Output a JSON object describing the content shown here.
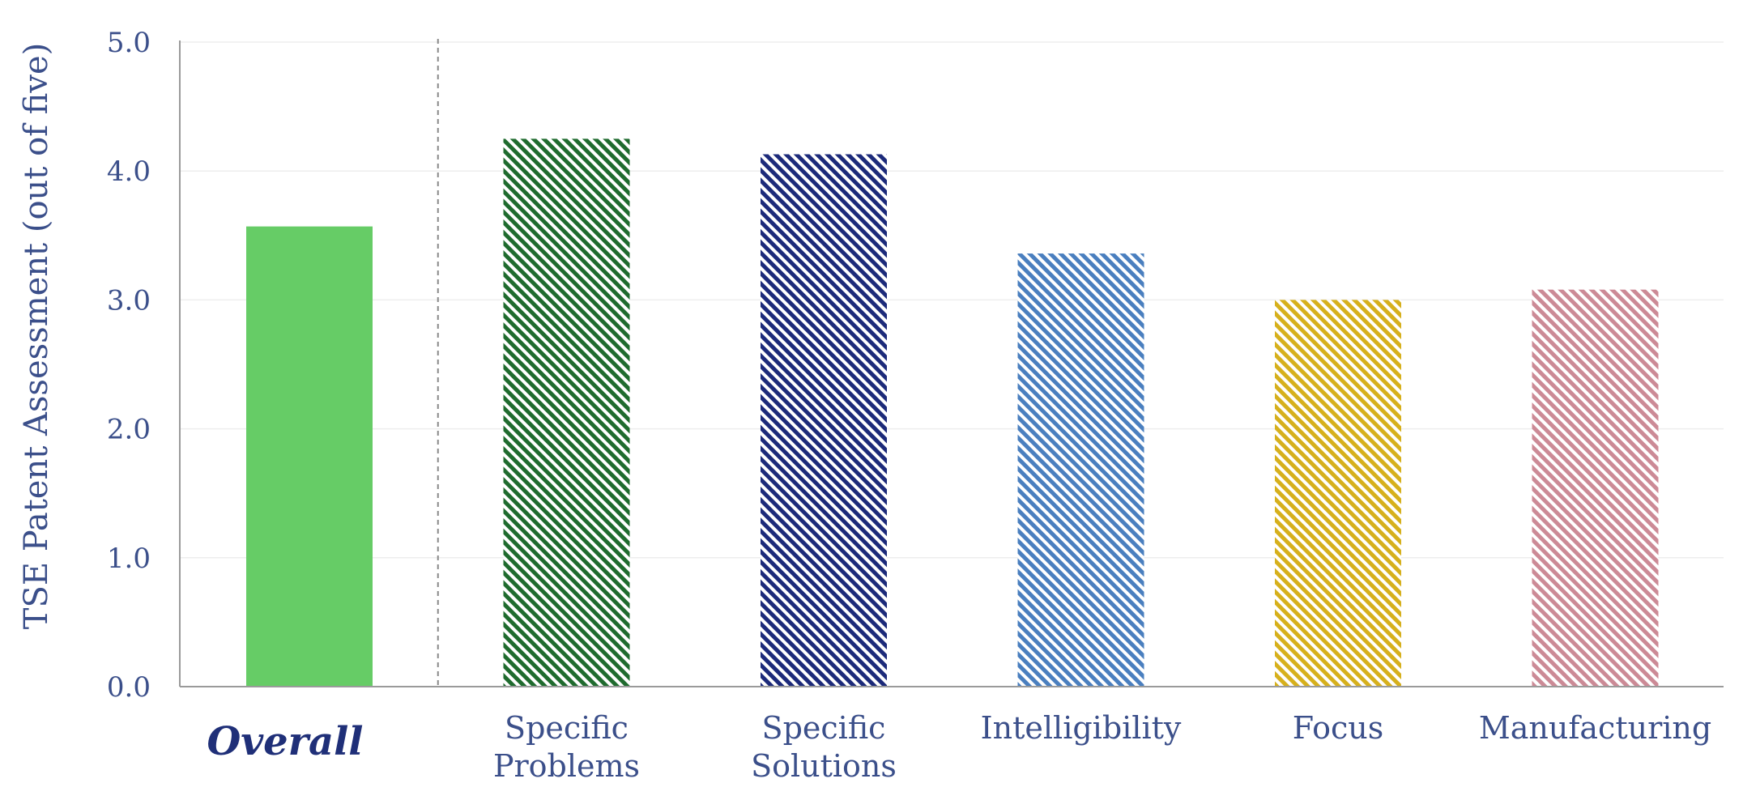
{
  "chart_data": {
    "type": "bar",
    "title": "",
    "xlabel": "",
    "ylabel": "TSE Patent Assessment (out of five)",
    "ylim": [
      0,
      5
    ],
    "yticks": [
      0,
      1,
      2,
      3,
      4,
      5
    ],
    "ytick_labels": [
      "0.0",
      "1.0",
      "2.0",
      "3.0",
      "4.0",
      "5.0"
    ],
    "grid": true,
    "legend": "none",
    "categories": [
      [
        "Overall"
      ],
      [
        "Specific",
        "Problems"
      ],
      [
        "Specific",
        "Solutions"
      ],
      [
        "Intelligibility"
      ],
      [
        "Focus"
      ],
      [
        "Manufacturing"
      ]
    ],
    "values": [
      3.57,
      4.25,
      4.13,
      3.36,
      3.0,
      3.08
    ],
    "colors": [
      "#66cc66",
      "#1f6b2e",
      "#1c2a7a",
      "#4a7fbf",
      "#d6b01c",
      "#cc8a96"
    ],
    "hatched": [
      false,
      true,
      true,
      true,
      true,
      true
    ],
    "emphasized_category": 0,
    "separator_after_category": 0
  }
}
